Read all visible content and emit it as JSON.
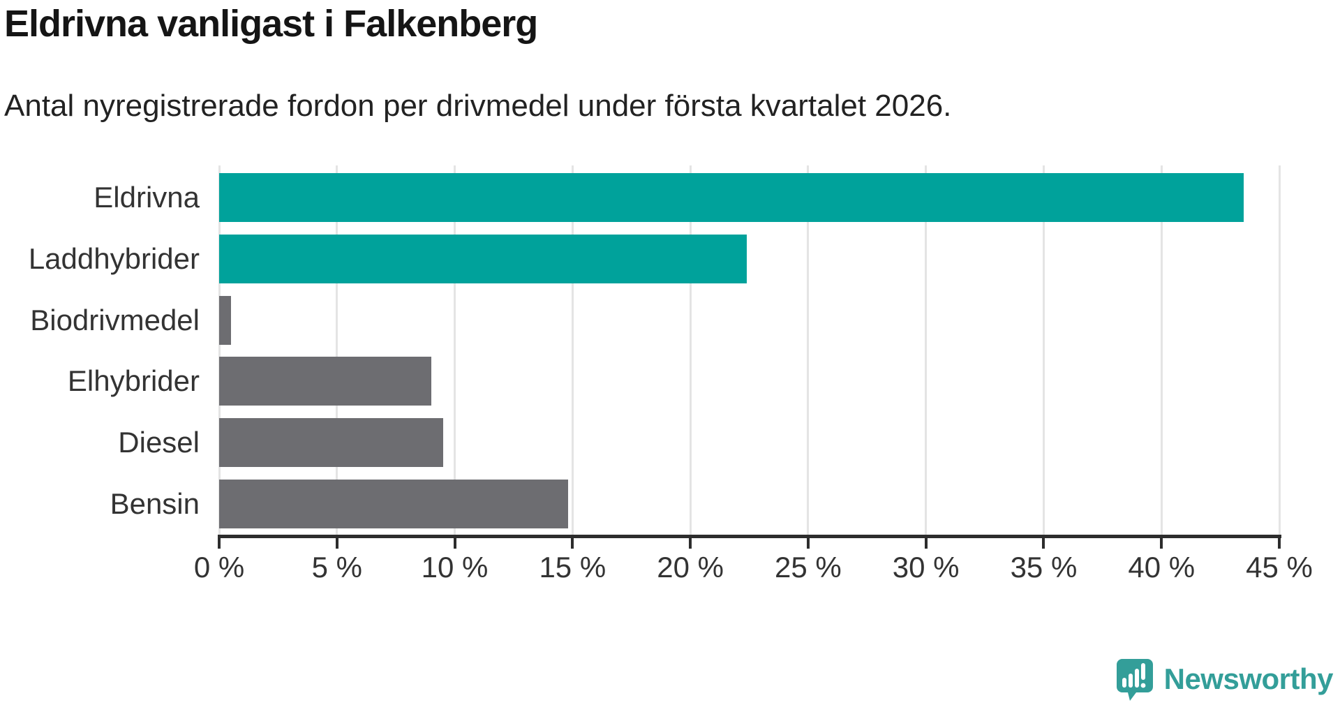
{
  "header": {
    "title": "Eldrivna vanligast i Falkenberg",
    "subtitle": "Antal nyregistrerade fordon per drivmedel under första kvartalet 2026."
  },
  "chart_data": {
    "type": "bar",
    "orientation": "horizontal",
    "title": "Eldrivna vanligast i Falkenberg",
    "subtitle": "Antal nyregistrerade fordon per drivmedel under första kvartalet 2026.",
    "categories": [
      "Eldrivna",
      "Laddhybrider",
      "Biodrivmedel",
      "Elhybrider",
      "Diesel",
      "Bensin"
    ],
    "values": [
      43.5,
      22.4,
      0.5,
      9.0,
      9.5,
      14.8
    ],
    "bar_color_keys": [
      "highlight",
      "highlight",
      "base",
      "base",
      "base",
      "base"
    ],
    "xlabel": "",
    "ylabel": "",
    "xlim": [
      0,
      45
    ],
    "ticks": [
      0,
      5,
      10,
      15,
      20,
      25,
      30,
      35,
      40,
      45
    ],
    "tick_suffix": " %",
    "grid": true,
    "legend": false
  },
  "colors": {
    "highlight": "#00a29b",
    "base": "#6d6d71",
    "gridline": "#e4e4e4",
    "axis": "#2d2d2d",
    "label": "#333333",
    "logo_teal": "#339e99"
  },
  "branding": {
    "logo_text": "Newsworthy"
  }
}
